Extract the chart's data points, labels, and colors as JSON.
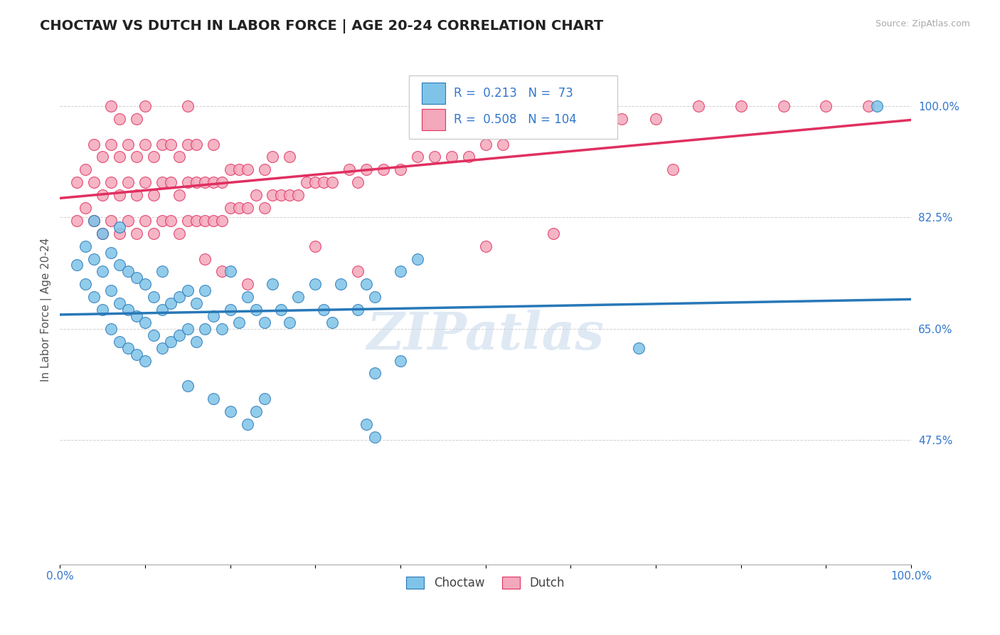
{
  "title": "CHOCTAW VS DUTCH IN LABOR FORCE | AGE 20-24 CORRELATION CHART",
  "source_text": "Source: ZipAtlas.com",
  "ylabel": "In Labor Force | Age 20-24",
  "xlim": [
    0.0,
    1.0
  ],
  "ylim": [
    0.28,
    1.08
  ],
  "ytick_positions": [
    0.475,
    0.65,
    0.825,
    1.0
  ],
  "ytick_labels": [
    "47.5%",
    "65.0%",
    "82.5%",
    "100.0%"
  ],
  "choctaw_color": "#7fc4e8",
  "dutch_color": "#f4a8bb",
  "choctaw_line_color": "#2878b8",
  "dutch_line_color": "#e03060",
  "choctaw_R": 0.213,
  "choctaw_N": 73,
  "dutch_R": 0.508,
  "dutch_N": 104,
  "legend_label_choctaw": "Choctaw",
  "legend_label_dutch": "Dutch",
  "watermark": "ZIPatlas",
  "background_color": "#ffffff",
  "grid_color": "#d0d0d0",
  "choctaw_x": [
    0.02,
    0.03,
    0.03,
    0.04,
    0.04,
    0.04,
    0.05,
    0.05,
    0.05,
    0.06,
    0.06,
    0.06,
    0.07,
    0.07,
    0.07,
    0.07,
    0.08,
    0.08,
    0.08,
    0.09,
    0.09,
    0.09,
    0.1,
    0.1,
    0.1,
    0.11,
    0.11,
    0.12,
    0.12,
    0.12,
    0.13,
    0.13,
    0.14,
    0.14,
    0.15,
    0.15,
    0.16,
    0.16,
    0.17,
    0.17,
    0.18,
    0.19,
    0.2,
    0.2,
    0.21,
    0.22,
    0.23,
    0.24,
    0.25,
    0.26,
    0.27,
    0.28,
    0.3,
    0.31,
    0.32,
    0.33,
    0.35,
    0.36,
    0.37,
    0.4,
    0.42,
    0.15,
    0.18,
    0.2,
    0.22,
    0.23,
    0.24,
    0.37,
    0.4,
    0.68,
    0.36,
    0.37,
    0.96
  ],
  "choctaw_y": [
    0.75,
    0.72,
    0.78,
    0.7,
    0.76,
    0.82,
    0.68,
    0.74,
    0.8,
    0.65,
    0.71,
    0.77,
    0.63,
    0.69,
    0.75,
    0.81,
    0.62,
    0.68,
    0.74,
    0.61,
    0.67,
    0.73,
    0.6,
    0.66,
    0.72,
    0.64,
    0.7,
    0.62,
    0.68,
    0.74,
    0.63,
    0.69,
    0.64,
    0.7,
    0.65,
    0.71,
    0.63,
    0.69,
    0.65,
    0.71,
    0.67,
    0.65,
    0.68,
    0.74,
    0.66,
    0.7,
    0.68,
    0.66,
    0.72,
    0.68,
    0.66,
    0.7,
    0.72,
    0.68,
    0.66,
    0.72,
    0.68,
    0.72,
    0.7,
    0.74,
    0.76,
    0.56,
    0.54,
    0.52,
    0.5,
    0.52,
    0.54,
    0.58,
    0.6,
    0.62,
    0.5,
    0.48,
    1.0
  ],
  "dutch_x": [
    0.02,
    0.02,
    0.03,
    0.03,
    0.04,
    0.04,
    0.04,
    0.05,
    0.05,
    0.05,
    0.06,
    0.06,
    0.06,
    0.06,
    0.07,
    0.07,
    0.07,
    0.07,
    0.08,
    0.08,
    0.08,
    0.09,
    0.09,
    0.09,
    0.09,
    0.1,
    0.1,
    0.1,
    0.1,
    0.11,
    0.11,
    0.11,
    0.12,
    0.12,
    0.12,
    0.13,
    0.13,
    0.13,
    0.14,
    0.14,
    0.14,
    0.15,
    0.15,
    0.15,
    0.15,
    0.16,
    0.16,
    0.16,
    0.17,
    0.17,
    0.18,
    0.18,
    0.18,
    0.19,
    0.19,
    0.2,
    0.2,
    0.21,
    0.21,
    0.22,
    0.22,
    0.23,
    0.24,
    0.24,
    0.25,
    0.25,
    0.26,
    0.27,
    0.27,
    0.28,
    0.29,
    0.3,
    0.31,
    0.32,
    0.34,
    0.35,
    0.36,
    0.38,
    0.4,
    0.42,
    0.44,
    0.46,
    0.48,
    0.5,
    0.52,
    0.55,
    0.58,
    0.6,
    0.63,
    0.66,
    0.7,
    0.75,
    0.8,
    0.85,
    0.9,
    0.95,
    0.17,
    0.19,
    0.22,
    0.3,
    0.35,
    0.5,
    0.58,
    0.72
  ],
  "dutch_y": [
    0.82,
    0.88,
    0.84,
    0.9,
    0.82,
    0.88,
    0.94,
    0.8,
    0.86,
    0.92,
    0.82,
    0.88,
    0.94,
    1.0,
    0.8,
    0.86,
    0.92,
    0.98,
    0.82,
    0.88,
    0.94,
    0.8,
    0.86,
    0.92,
    0.98,
    0.82,
    0.88,
    0.94,
    1.0,
    0.8,
    0.86,
    0.92,
    0.82,
    0.88,
    0.94,
    0.82,
    0.88,
    0.94,
    0.8,
    0.86,
    0.92,
    0.82,
    0.88,
    0.94,
    1.0,
    0.82,
    0.88,
    0.94,
    0.82,
    0.88,
    0.82,
    0.88,
    0.94,
    0.82,
    0.88,
    0.84,
    0.9,
    0.84,
    0.9,
    0.84,
    0.9,
    0.86,
    0.84,
    0.9,
    0.86,
    0.92,
    0.86,
    0.86,
    0.92,
    0.86,
    0.88,
    0.88,
    0.88,
    0.88,
    0.9,
    0.88,
    0.9,
    0.9,
    0.9,
    0.92,
    0.92,
    0.92,
    0.92,
    0.94,
    0.94,
    0.96,
    0.96,
    0.96,
    0.98,
    0.98,
    0.98,
    1.0,
    1.0,
    1.0,
    1.0,
    1.0,
    0.76,
    0.74,
    0.72,
    0.78,
    0.74,
    0.78,
    0.8,
    0.9
  ]
}
